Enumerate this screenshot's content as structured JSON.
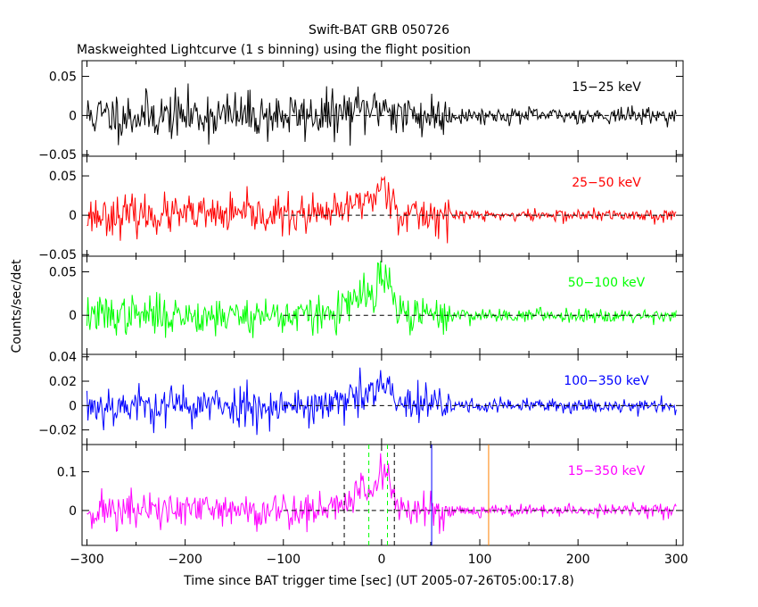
{
  "chart_data": {
    "type": "line",
    "title": "Swift-BAT GRB 050726",
    "subtitle": "Maskweighted Lightcurve (1 s binning) using the flight position",
    "xlabel": "Time since BAT trigger time [sec] (UT 2005-07-26T05:00:17.8)",
    "ylabel": "Counts/sec/det",
    "xlim": [
      -305,
      307
    ],
    "x_ticks": [
      -300,
      -200,
      -100,
      0,
      100,
      200,
      300
    ],
    "x_tick_labels": [
      "-300",
      "-200",
      "-100",
      "0",
      "100",
      "200",
      "300"
    ],
    "grid": false,
    "panels": [
      {
        "band": "15-25 keV",
        "label_text": "15−25 keV",
        "color": "#000000",
        "ylim": [
          -0.052,
          0.07
        ],
        "y_ticks": [
          0.05,
          0,
          -0.05
        ],
        "y_tick_labels": [
          "0.05",
          "0",
          "−0.05"
        ],
        "noise_pre": 0.015,
        "noise_post": 0.005,
        "burst_peak": 0.012,
        "seed": 11
      },
      {
        "band": "25-50 keV",
        "label_text": "25−50 keV",
        "color": "#ff0000",
        "ylim": [
          -0.052,
          0.075
        ],
        "y_ticks": [
          0.05,
          0,
          -0.05
        ],
        "y_tick_labels": [
          "0.05",
          "0",
          "−0.05"
        ],
        "noise_pre": 0.012,
        "noise_post": 0.004,
        "burst_peak": 0.038,
        "seed": 23
      },
      {
        "band": "50-100 keV",
        "label_text": "50−100 keV",
        "color": "#00ff00",
        "ylim": [
          -0.045,
          0.068
        ],
        "y_ticks": [
          0.05,
          0
        ],
        "y_tick_labels": [
          "0.05",
          "0"
        ],
        "noise_pre": 0.011,
        "noise_post": 0.004,
        "burst_peak": 0.042,
        "seed": 37
      },
      {
        "band": "100-350 keV",
        "label_text": "100−350 keV",
        "color": "#0000ff",
        "ylim": [
          -0.032,
          0.042
        ],
        "y_ticks": [
          0.04,
          0.02,
          0,
          -0.02
        ],
        "y_tick_labels": [
          "0.04",
          "0.02",
          "0",
          "−0.02"
        ],
        "noise_pre": 0.0085,
        "noise_post": 0.003,
        "burst_peak": 0.016,
        "seed": 53
      },
      {
        "band": "15-350 keV",
        "label_text": "15−350 keV",
        "color": "#ff00ff",
        "ylim": [
          -0.09,
          0.17
        ],
        "y_ticks": [
          0.1,
          0
        ],
        "y_tick_labels": [
          "0.1",
          "0"
        ],
        "noise_pre": 0.025,
        "noise_post": 0.008,
        "burst_peak": 0.1,
        "seed": 71
      }
    ],
    "zero_line_x_range": [
      -100,
      300
    ],
    "burst_markers": [
      {
        "x": -38,
        "color": "#000000",
        "style": "dashed"
      },
      {
        "x": -13,
        "color": "#00ff00",
        "style": "dashed"
      },
      {
        "x": 6,
        "color": "#00ff00",
        "style": "dashed"
      },
      {
        "x": 13,
        "color": "#000000",
        "style": "dashed"
      },
      {
        "x": 51,
        "color": "#0000ff",
        "style": "solid"
      },
      {
        "x": 109,
        "color": "#ff8000",
        "style": "solid"
      }
    ]
  }
}
